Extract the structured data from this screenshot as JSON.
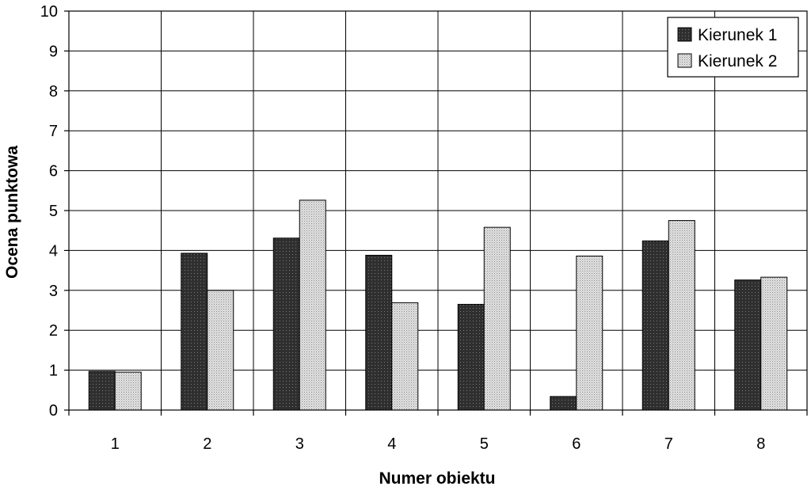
{
  "chart_data": {
    "type": "bar",
    "title": "",
    "xlabel": "Numer obiektu",
    "ylabel": "Ocena punktowa",
    "categories": [
      "1",
      "2",
      "3",
      "4",
      "5",
      "6",
      "7",
      "8"
    ],
    "series": [
      {
        "name": "Kierunek 1",
        "values": [
          0.97,
          3.93,
          4.31,
          3.88,
          2.65,
          0.34,
          4.24,
          3.26
        ],
        "color": "#2f2f2f"
      },
      {
        "name": "Kierunek 2",
        "values": [
          0.95,
          3.0,
          5.26,
          2.69,
          4.58,
          3.86,
          4.75,
          3.33
        ],
        "color": "#cfcfcf"
      }
    ],
    "ylim": [
      0,
      10
    ],
    "yticks": [
      "0",
      "1",
      "2",
      "3",
      "4",
      "5",
      "6",
      "7",
      "8",
      "9",
      "10"
    ],
    "grid": true,
    "legend": "top-right"
  }
}
